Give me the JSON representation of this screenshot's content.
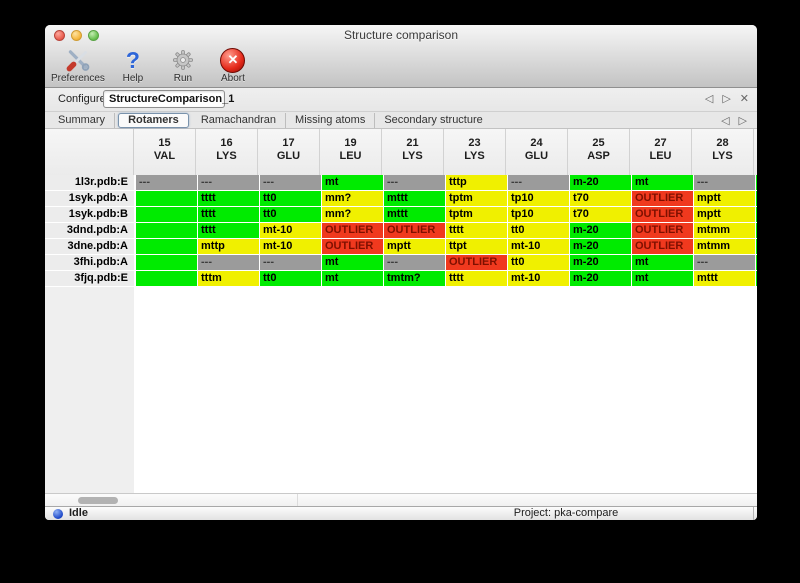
{
  "window": {
    "title": "Structure comparison"
  },
  "toolbar": {
    "items": [
      {
        "label": "Preferences",
        "icon": "tools-icon"
      },
      {
        "label": "Help",
        "icon": "help-icon"
      },
      {
        "label": "Run",
        "icon": "gear-icon"
      },
      {
        "label": "Abort",
        "icon": "abort-icon"
      }
    ]
  },
  "configure": {
    "label": "Configure",
    "value": "StructureComparison_1",
    "nav": {
      "prev": "◁",
      "next": "▷",
      "close": "✕"
    }
  },
  "tabs": {
    "items": [
      "Summary",
      "Rotamers",
      "Ramachandran",
      "Missing atoms",
      "Secondary structure"
    ],
    "selected": "Rotamers",
    "nav": {
      "prev": "◁",
      "next": "▷"
    }
  },
  "table": {
    "columns": [
      {
        "num": "15",
        "res": "VAL"
      },
      {
        "num": "16",
        "res": "LYS"
      },
      {
        "num": "17",
        "res": "GLU"
      },
      {
        "num": "19",
        "res": "LEU"
      },
      {
        "num": "21",
        "res": "LYS"
      },
      {
        "num": "23",
        "res": "LYS"
      },
      {
        "num": "24",
        "res": "GLU"
      },
      {
        "num": "25",
        "res": "ASP"
      },
      {
        "num": "27",
        "res": "LEU"
      },
      {
        "num": "28",
        "res": "LYS"
      }
    ],
    "rows": [
      {
        "label": "1l3r.pdb:E",
        "cells": [
          [
            "---",
            "gray"
          ],
          [
            "---",
            "gray"
          ],
          [
            "---",
            "gray"
          ],
          [
            "mt",
            "green"
          ],
          [
            "---",
            "gray"
          ],
          [
            "tttp",
            "yellow"
          ],
          [
            "---",
            "gray"
          ],
          [
            "m-20",
            "green"
          ],
          [
            "mt",
            "green"
          ],
          [
            "---",
            "gray"
          ]
        ],
        "tail": "green"
      },
      {
        "label": "1syk.pdb:A",
        "cells": [
          [
            "",
            "green",
            "clip"
          ],
          [
            "tttt",
            "green"
          ],
          [
            "tt0",
            "green"
          ],
          [
            "mm?",
            "yellow"
          ],
          [
            "mttt",
            "green"
          ],
          [
            "tptm",
            "yellow"
          ],
          [
            "tp10",
            "yellow"
          ],
          [
            "t70",
            "yellow"
          ],
          [
            "OUTLIER",
            "red"
          ],
          [
            "mptt",
            "yellow"
          ]
        ],
        "tail": "green"
      },
      {
        "label": "1syk.pdb:B",
        "cells": [
          [
            "",
            "green",
            "clip"
          ],
          [
            "tttt",
            "green"
          ],
          [
            "tt0",
            "green"
          ],
          [
            "mm?",
            "yellow"
          ],
          [
            "mttt",
            "green"
          ],
          [
            "tptm",
            "yellow"
          ],
          [
            "tp10",
            "yellow"
          ],
          [
            "t70",
            "yellow"
          ],
          [
            "OUTLIER",
            "red"
          ],
          [
            "mptt",
            "yellow"
          ]
        ],
        "tail": "green"
      },
      {
        "label": "3dnd.pdb:A",
        "cells": [
          [
            "",
            "green",
            "clip"
          ],
          [
            "tttt",
            "green"
          ],
          [
            "mt-10",
            "yellow"
          ],
          [
            "OUTLIER",
            "red"
          ],
          [
            "OUTLIER",
            "red"
          ],
          [
            "tttt",
            "yellow"
          ],
          [
            "tt0",
            "yellow"
          ],
          [
            "m-20",
            "green"
          ],
          [
            "OUTLIER",
            "red"
          ],
          [
            "mtmm",
            "yellow"
          ]
        ],
        "tail": "green"
      },
      {
        "label": "3dne.pdb:A",
        "cells": [
          [
            "",
            "green",
            "clip"
          ],
          [
            "mttp",
            "yellow"
          ],
          [
            "mt-10",
            "yellow"
          ],
          [
            "OUTLIER",
            "red"
          ],
          [
            "mptt",
            "yellow"
          ],
          [
            "ttpt",
            "yellow"
          ],
          [
            "mt-10",
            "yellow"
          ],
          [
            "m-20",
            "green"
          ],
          [
            "OUTLIER",
            "red"
          ],
          [
            "mtmm",
            "yellow"
          ]
        ],
        "tail": "green"
      },
      {
        "label": "3fhi.pdb:A",
        "cells": [
          [
            "",
            "green",
            "clip"
          ],
          [
            "---",
            "gray"
          ],
          [
            "---",
            "gray"
          ],
          [
            "mt",
            "green"
          ],
          [
            "---",
            "gray"
          ],
          [
            "OUTLIER",
            "red"
          ],
          [
            "tt0",
            "yellow"
          ],
          [
            "m-20",
            "green"
          ],
          [
            "mt",
            "green"
          ],
          [
            "---",
            "gray"
          ]
        ],
        "tail": "green"
      },
      {
        "label": "3fjq.pdb:E",
        "cells": [
          [
            "",
            "green",
            "clip"
          ],
          [
            "tttm",
            "yellow"
          ],
          [
            "tt0",
            "green"
          ],
          [
            "mt",
            "green"
          ],
          [
            "tmtm?",
            "green"
          ],
          [
            "tttt",
            "yellow"
          ],
          [
            "mt-10",
            "yellow"
          ],
          [
            "m-20",
            "green"
          ],
          [
            "mt",
            "green"
          ],
          [
            "mttt",
            "yellow"
          ]
        ],
        "tail": "green"
      }
    ]
  },
  "statusbar": {
    "status": "Idle",
    "project": "Project: pka-compare"
  },
  "colors": {
    "rotamer_green": "#00EB00",
    "rotamer_yellow": "#F0F000",
    "rotamer_red": "#F0391E",
    "rotamer_gray": "#9B9B9B",
    "status_sphere_blue": "#1B46C8"
  }
}
